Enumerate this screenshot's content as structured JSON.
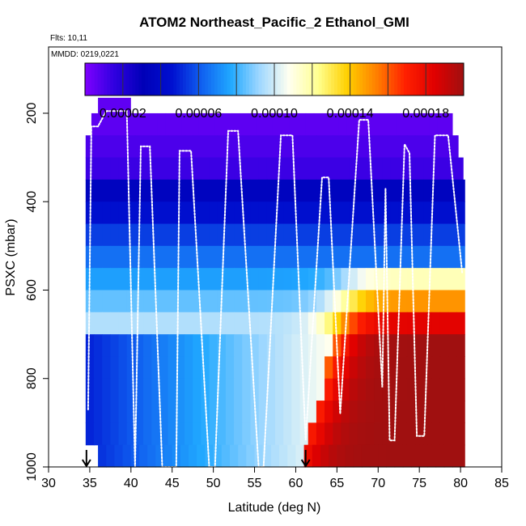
{
  "chart_data": {
    "type": "heatmap",
    "title": "ATOM2 Northeast_Pacific_2 Ethanol_GMI",
    "flights_label": "Flts: 10,11",
    "dates_label": "MMDD: 0219,0221",
    "xlabel": "Latitude (deg N)",
    "ylabel": "PSXC (mbar)",
    "xlim": [
      30,
      85
    ],
    "ylim": [
      1000,
      50
    ],
    "x_ticks": [
      "30",
      "35",
      "40",
      "45",
      "50",
      "55",
      "60",
      "65",
      "70",
      "75",
      "80",
      "85"
    ],
    "y_ticks": [
      "200",
      "400",
      "600",
      "800",
      "1000"
    ],
    "colorbar": {
      "range": [
        0,
        0.0002
      ],
      "tick_values": [
        2e-05,
        6e-05,
        0.0001,
        0.00014,
        0.00018
      ],
      "tick_labels": [
        "0.00002",
        "0.00006",
        "0.00010",
        "0.00014",
        "0.00018"
      ],
      "colors": [
        "#7f00ff",
        "#3000e0",
        "#0000b8",
        "#0010d0",
        "#1060f0",
        "#20a8ff",
        "#a0d8ff",
        "#fffff0",
        "#ffff90",
        "#ffd000",
        "#ff8000",
        "#ff2000",
        "#e00000",
        "#a01010"
      ]
    },
    "pressure_bins": [
      200,
      250,
      300,
      350,
      400,
      450,
      500,
      550,
      600,
      650,
      700,
      750,
      800,
      850,
      900,
      950,
      1000
    ],
    "latitude_range": [
      34.5,
      80.5
    ],
    "arrows_latitude": [
      34.6,
      61.2
    ],
    "flight_track_nodes": [
      [
        34.8,
        870
      ],
      [
        35.2,
        230
      ],
      [
        36,
        230
      ],
      [
        37,
        195
      ],
      [
        39.5,
        195
      ],
      [
        40.5,
        1000
      ],
      [
        41.2,
        275
      ],
      [
        42.3,
        275
      ],
      [
        43.8,
        1000
      ],
      [
        45.5,
        1000
      ],
      [
        45.9,
        285
      ],
      [
        47.3,
        285
      ],
      [
        49.5,
        1000
      ],
      [
        50.2,
        1000
      ],
      [
        51.8,
        240
      ],
      [
        53,
        240
      ],
      [
        55.5,
        1000
      ],
      [
        56.1,
        1000
      ],
      [
        58.2,
        250
      ],
      [
        59.6,
        250
      ],
      [
        61.2,
        940
      ],
      [
        63.2,
        345
      ],
      [
        64,
        345
      ],
      [
        65.4,
        880
      ],
      [
        67.7,
        215
      ],
      [
        68.8,
        215
      ],
      [
        70.5,
        820
      ],
      [
        70.9,
        370
      ],
      [
        71.4,
        940
      ],
      [
        72,
        940
      ],
      [
        73.2,
        270
      ],
      [
        73.8,
        290
      ],
      [
        74.7,
        930
      ],
      [
        75.6,
        930
      ],
      [
        76.9,
        250
      ],
      [
        78.5,
        250
      ],
      [
        80.2,
        560
      ]
    ]
  }
}
